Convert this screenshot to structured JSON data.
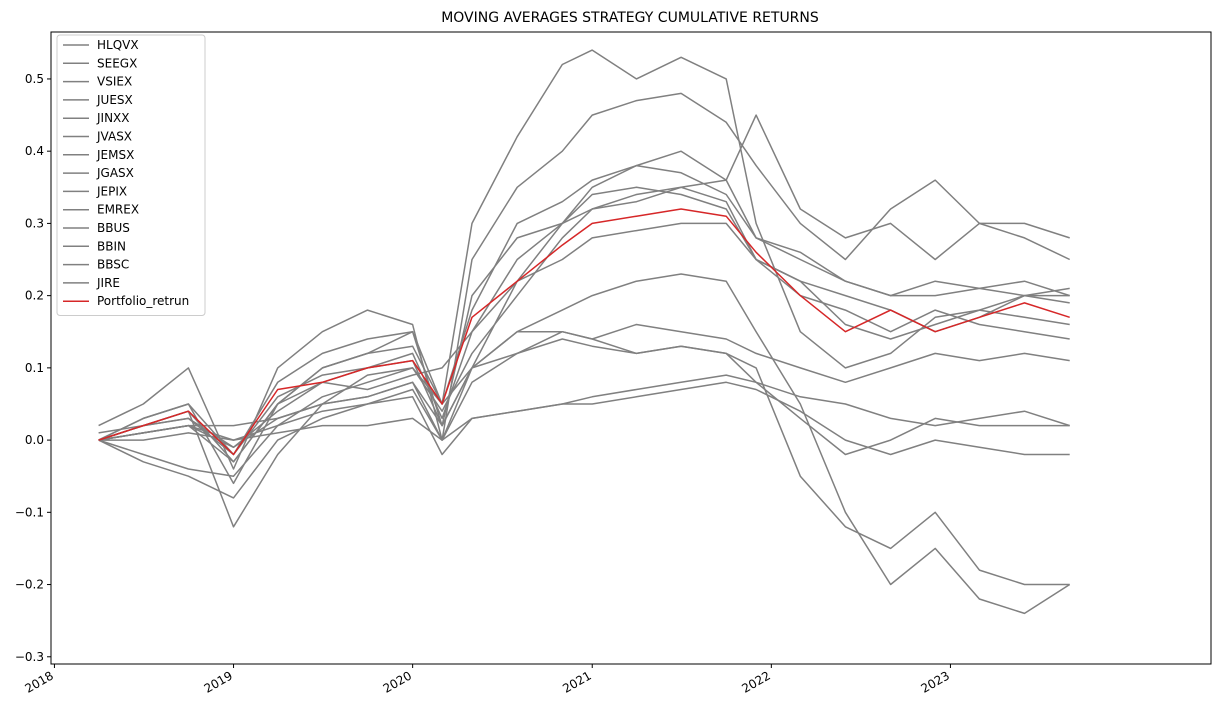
{
  "chart_data": {
    "type": "line",
    "title": "MOVING AVERAGES STRATEGY CUMULATIVE RETURNS",
    "xlabel": "",
    "ylabel": "",
    "x_axis": "date",
    "xlim": [
      "2017-12-25",
      "2024-06-15"
    ],
    "ylim": [
      -0.31,
      0.565
    ],
    "x_ticks": [
      "2018",
      "2019",
      "2020",
      "2021",
      "2022",
      "2023"
    ],
    "y_ticks": [
      -0.3,
      -0.2,
      -0.1,
      0.0,
      0.1,
      0.2,
      0.3,
      0.4,
      0.5
    ],
    "y_tick_labels": [
      "−0.3",
      "−0.2",
      "−0.1",
      "0.0",
      "0.1",
      "0.2",
      "0.3",
      "0.4",
      "0.5"
    ],
    "grid": false,
    "legend_position": "upper-left",
    "series_colors": {
      "assets": "#808080",
      "portfolio": "#d62728"
    },
    "x": [
      "2018-04",
      "2018-07",
      "2018-10",
      "2019-01",
      "2019-04",
      "2019-07",
      "2019-10",
      "2020-01",
      "2020-03",
      "2020-05",
      "2020-08",
      "2020-11",
      "2021-01",
      "2021-04",
      "2021-07",
      "2021-10",
      "2021-12",
      "2022-03",
      "2022-06",
      "2022-09",
      "2022-12",
      "2023-03",
      "2023-06",
      "2023-09"
    ],
    "series": [
      {
        "name": "HLQVX",
        "color": "#808080",
        "values": [
          0.0,
          0.02,
          0.04,
          -0.03,
          0.05,
          0.08,
          0.07,
          0.09,
          0.1,
          0.15,
          0.22,
          0.3,
          0.35,
          0.38,
          0.4,
          0.36,
          0.45,
          0.32,
          0.28,
          0.3,
          0.25,
          0.3,
          0.28,
          0.25
        ]
      },
      {
        "name": "SEEGX",
        "color": "#808080",
        "values": [
          0.0,
          0.03,
          0.05,
          -0.02,
          0.08,
          0.12,
          0.14,
          0.15,
          0.05,
          0.3,
          0.42,
          0.52,
          0.54,
          0.5,
          0.53,
          0.5,
          0.3,
          0.15,
          0.1,
          0.12,
          0.17,
          0.18,
          0.2,
          0.21
        ]
      },
      {
        "name": "VSIEX",
        "color": "#808080",
        "values": [
          0.02,
          0.05,
          0.1,
          -0.04,
          0.1,
          0.15,
          0.18,
          0.16,
          0.0,
          0.25,
          0.35,
          0.4,
          0.45,
          0.47,
          0.48,
          0.44,
          0.38,
          0.3,
          0.25,
          0.32,
          0.36,
          0.3,
          0.3,
          0.28
        ]
      },
      {
        "name": "JUESX",
        "color": "#808080",
        "values": [
          0.0,
          0.03,
          0.05,
          -0.06,
          0.05,
          0.1,
          0.12,
          0.15,
          0.02,
          0.2,
          0.28,
          0.3,
          0.32,
          0.33,
          0.35,
          0.36,
          0.28,
          0.25,
          0.22,
          0.2,
          0.22,
          0.21,
          0.2,
          0.2
        ]
      },
      {
        "name": "JINXX",
        "color": "#808080",
        "values": [
          0.01,
          0.02,
          0.04,
          -0.12,
          -0.02,
          0.05,
          0.09,
          0.1,
          0.05,
          0.1,
          0.22,
          0.25,
          0.28,
          0.29,
          0.3,
          0.3,
          0.25,
          0.2,
          0.18,
          0.15,
          0.18,
          0.16,
          0.15,
          0.14
        ]
      },
      {
        "name": "JVASX",
        "color": "#808080",
        "values": [
          0.0,
          -0.02,
          -0.04,
          -0.05,
          0.02,
          0.06,
          0.08,
          0.1,
          0.04,
          0.12,
          0.2,
          0.28,
          0.32,
          0.34,
          0.35,
          0.33,
          0.25,
          0.22,
          0.2,
          0.18,
          0.15,
          0.17,
          0.2,
          0.19
        ]
      },
      {
        "name": "JEMSX",
        "color": "#808080",
        "values": [
          0.0,
          0.02,
          0.03,
          -0.01,
          0.04,
          0.08,
          0.1,
          0.12,
          0.03,
          0.15,
          0.25,
          0.3,
          0.34,
          0.35,
          0.34,
          0.32,
          0.25,
          0.22,
          0.16,
          0.14,
          0.16,
          0.18,
          0.17,
          0.16
        ]
      },
      {
        "name": "JGASX",
        "color": "#808080",
        "values": [
          0.0,
          0.01,
          0.02,
          -0.03,
          0.05,
          0.1,
          0.12,
          0.13,
          0.05,
          0.18,
          0.3,
          0.33,
          0.36,
          0.38,
          0.37,
          0.34,
          0.28,
          0.26,
          0.22,
          0.2,
          0.2,
          0.21,
          0.22,
          0.2
        ]
      },
      {
        "name": "JEPIX",
        "color": "#808080",
        "values": [
          0.0,
          0.01,
          0.02,
          0.02,
          0.03,
          0.05,
          0.06,
          0.08,
          0.02,
          0.1,
          0.15,
          0.15,
          0.14,
          0.16,
          0.15,
          0.14,
          0.12,
          0.1,
          0.08,
          0.1,
          0.12,
          0.11,
          0.12,
          0.11
        ]
      },
      {
        "name": "EMREX",
        "color": "#808080",
        "values": [
          0.0,
          0.0,
          0.01,
          0.0,
          0.01,
          0.02,
          0.02,
          0.03,
          0.0,
          0.03,
          0.04,
          0.05,
          0.06,
          0.07,
          0.08,
          0.09,
          0.08,
          0.06,
          0.05,
          0.03,
          0.02,
          0.03,
          0.04,
          0.02
        ]
      },
      {
        "name": "BBUS",
        "color": "#808080",
        "values": [
          0.0,
          0.01,
          0.02,
          0.0,
          0.02,
          0.04,
          0.05,
          0.06,
          -0.02,
          0.03,
          0.04,
          0.05,
          0.05,
          0.06,
          0.07,
          0.08,
          0.07,
          0.04,
          0.0,
          -0.02,
          0.0,
          -0.01,
          -0.02,
          -0.02
        ]
      },
      {
        "name": "BBIN",
        "color": "#808080",
        "values": [
          0.0,
          0.02,
          0.03,
          -0.02,
          0.06,
          0.09,
          0.1,
          0.11,
          0.02,
          0.1,
          0.12,
          0.14,
          0.13,
          0.12,
          0.13,
          0.12,
          0.08,
          0.03,
          -0.02,
          0.0,
          0.03,
          0.02,
          0.02,
          0.02
        ]
      },
      {
        "name": "BBSC",
        "color": "#808080",
        "values": [
          0.0,
          -0.03,
          -0.05,
          -0.08,
          0.0,
          0.03,
          0.05,
          0.07,
          0.0,
          0.08,
          0.12,
          0.15,
          0.14,
          0.12,
          0.13,
          0.12,
          0.1,
          -0.05,
          -0.12,
          -0.15,
          -0.1,
          -0.18,
          -0.2,
          -0.2
        ]
      },
      {
        "name": "JIRE",
        "color": "#808080",
        "values": [
          0.0,
          0.01,
          0.02,
          -0.01,
          0.03,
          0.05,
          0.06,
          0.08,
          0.0,
          0.1,
          0.15,
          0.18,
          0.2,
          0.22,
          0.23,
          0.22,
          0.15,
          0.05,
          -0.1,
          -0.2,
          -0.15,
          -0.22,
          -0.24,
          -0.2
        ]
      },
      {
        "name": "Portfolio_retrun",
        "color": "#d62728",
        "values": [
          0.0,
          0.02,
          0.04,
          -0.02,
          0.07,
          0.08,
          0.1,
          0.11,
          0.05,
          0.17,
          0.22,
          0.27,
          0.3,
          0.31,
          0.32,
          0.31,
          0.26,
          0.2,
          0.15,
          0.18,
          0.15,
          0.17,
          0.19,
          0.17
        ]
      }
    ]
  }
}
